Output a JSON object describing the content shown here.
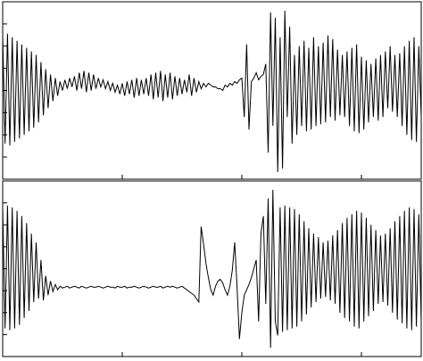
{
  "chart_data": [
    {
      "type": "line",
      "color": "#000000",
      "xlim": [
        0,
        175
      ],
      "xticks": [
        50,
        100,
        150
      ],
      "ylim": [
        -100,
        100
      ],
      "yticks": [
        -75,
        -50,
        -25,
        0,
        25,
        50,
        75
      ],
      "values": [
        62,
        -60,
        64,
        -62,
        60,
        -58,
        56,
        -54,
        52,
        -50,
        48,
        -46,
        44,
        -42,
        40,
        -36,
        32,
        -28,
        24,
        -20,
        18,
        -12,
        14,
        -6,
        10,
        0,
        12,
        2,
        14,
        4,
        16,
        0,
        20,
        2,
        22,
        -2,
        20,
        0,
        18,
        2,
        14,
        4,
        12,
        2,
        10,
        0,
        8,
        -2,
        6,
        -4,
        8,
        -6,
        10,
        -4,
        12,
        -8,
        14,
        -6,
        12,
        -4,
        14,
        -6,
        18,
        -10,
        20,
        -8,
        22,
        -12,
        18,
        -8,
        20,
        -10,
        16,
        -6,
        14,
        -4,
        12,
        -2,
        18,
        -6,
        14,
        -2,
        10,
        2,
        8,
        4,
        8,
        6,
        4,
        4,
        2,
        2,
        0,
        6,
        4,
        8,
        6,
        10,
        8,
        12,
        14,
        -30,
        52,
        -44,
        10,
        14,
        20,
        12,
        16,
        18,
        30,
        -70,
        88,
        -40,
        82,
        -92,
        60,
        -88,
        90,
        -30,
        72,
        -60,
        40,
        -50,
        50,
        -40,
        56,
        -46,
        48,
        -44,
        60,
        -40,
        50,
        -38,
        54,
        -36,
        62,
        -30,
        58,
        -34,
        46,
        -28,
        40,
        -30,
        44,
        -40,
        48,
        -46,
        52,
        -48,
        38,
        -44,
        34,
        -36,
        30,
        -30,
        36,
        -34,
        40,
        -30,
        44,
        -20,
        50,
        -24,
        40,
        -30,
        42,
        -40,
        50,
        -50,
        56,
        -56,
        60,
        -58,
        50,
        -30
      ]
    },
    {
      "type": "line",
      "color": "#000000",
      "xlim": [
        0,
        175
      ],
      "xticks": [
        50,
        100,
        150
      ],
      "ylim": [
        -100,
        100
      ],
      "yticks": [
        -75,
        -50,
        -25,
        0,
        25,
        50,
        75
      ],
      "values": [
        70,
        -68,
        72,
        -70,
        70,
        -68,
        66,
        -64,
        60,
        -56,
        52,
        -48,
        40,
        -38,
        30,
        -34,
        10,
        -36,
        -8,
        -30,
        -14,
        -26,
        -18,
        -24,
        -20,
        -22,
        -21,
        -20,
        -22,
        -21,
        -20,
        -21,
        -22,
        -20,
        -21,
        -22,
        -21,
        -20,
        -21,
        -21,
        -20,
        -21,
        -22,
        -21,
        -20,
        -21,
        -21,
        -22,
        -20,
        -21,
        -21,
        -20,
        -22,
        -21,
        -21,
        -20,
        -21,
        -22,
        -21,
        -20,
        -21,
        -22,
        -21,
        -20,
        -21,
        -21,
        -20,
        -22,
        -21,
        -20,
        -21,
        -20,
        -21,
        -22,
        -21,
        -20,
        -22,
        -24,
        -26,
        -28,
        -30,
        -34,
        -38,
        48,
        28,
        6,
        -10,
        -24,
        -30,
        -20,
        -14,
        -12,
        -16,
        -24,
        -30,
        -20,
        -2,
        30,
        -20,
        -80,
        -50,
        -30,
        -24,
        -18,
        -10,
        0,
        10,
        -60,
        40,
        60,
        -40,
        80,
        -90,
        90,
        -60,
        -76,
        70,
        -72,
        72,
        -70,
        70,
        -68,
        68,
        -66,
        62,
        -60,
        54,
        -52,
        46,
        -44,
        40,
        -38,
        36,
        -34,
        30,
        -32,
        32,
        -36,
        38,
        -40,
        44,
        -50,
        52,
        -56,
        58,
        -60,
        62,
        -66,
        66,
        -68,
        64,
        -60,
        58,
        -54,
        50,
        -48,
        44,
        -40,
        38,
        -38,
        40,
        -42,
        46,
        -50,
        54,
        -58,
        60,
        -62,
        66,
        -68,
        70,
        -70,
        68,
        -66,
        62,
        -60
      ]
    }
  ]
}
